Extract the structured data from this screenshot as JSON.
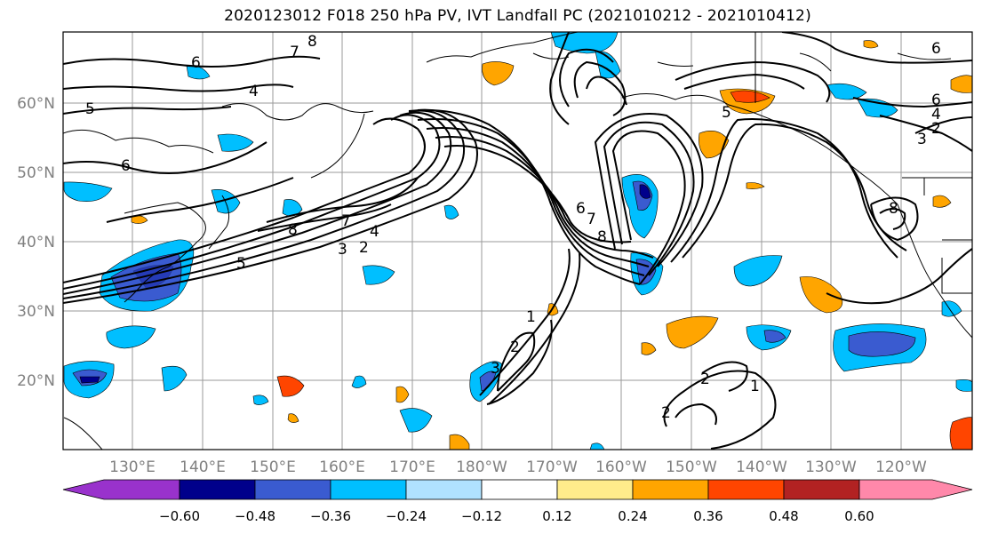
{
  "title": "2020123012 F018 250 hPa PV, IVT Landfall PC (2021010212 - 2021010412)",
  "lat_labels": [
    "60°N",
    "50°N",
    "40°N",
    "30°N",
    "20°N"
  ],
  "lon_labels": [
    "130°E",
    "140°E",
    "150°E",
    "160°E",
    "170°E",
    "180°W",
    "170°W",
    "160°W",
    "150°W",
    "140°W",
    "130°W",
    "120°W"
  ],
  "colorbar": {
    "ticks": [
      "−0.60",
      "−0.48",
      "−0.36",
      "−0.24",
      "−0.12",
      "0.12",
      "0.24",
      "0.36",
      "0.48",
      "0.60"
    ],
    "colors": [
      "#9932cc",
      "#00008b",
      "#3a5bd0",
      "#00bfff",
      "#b0e2ff",
      "#ffffff",
      "#ffec8b",
      "#ffa500",
      "#ff4500",
      "#b22222",
      "#ff88aa"
    ]
  },
  "contour_labels": [
    "6",
    "5",
    "6",
    "4",
    "7",
    "8",
    "7",
    "8",
    "5",
    "4",
    "3",
    "2",
    "6",
    "7",
    "8",
    "1",
    "2",
    "3",
    "2",
    "1",
    "2",
    "6",
    "4",
    "2",
    "3",
    "5",
    "6",
    "8"
  ]
}
